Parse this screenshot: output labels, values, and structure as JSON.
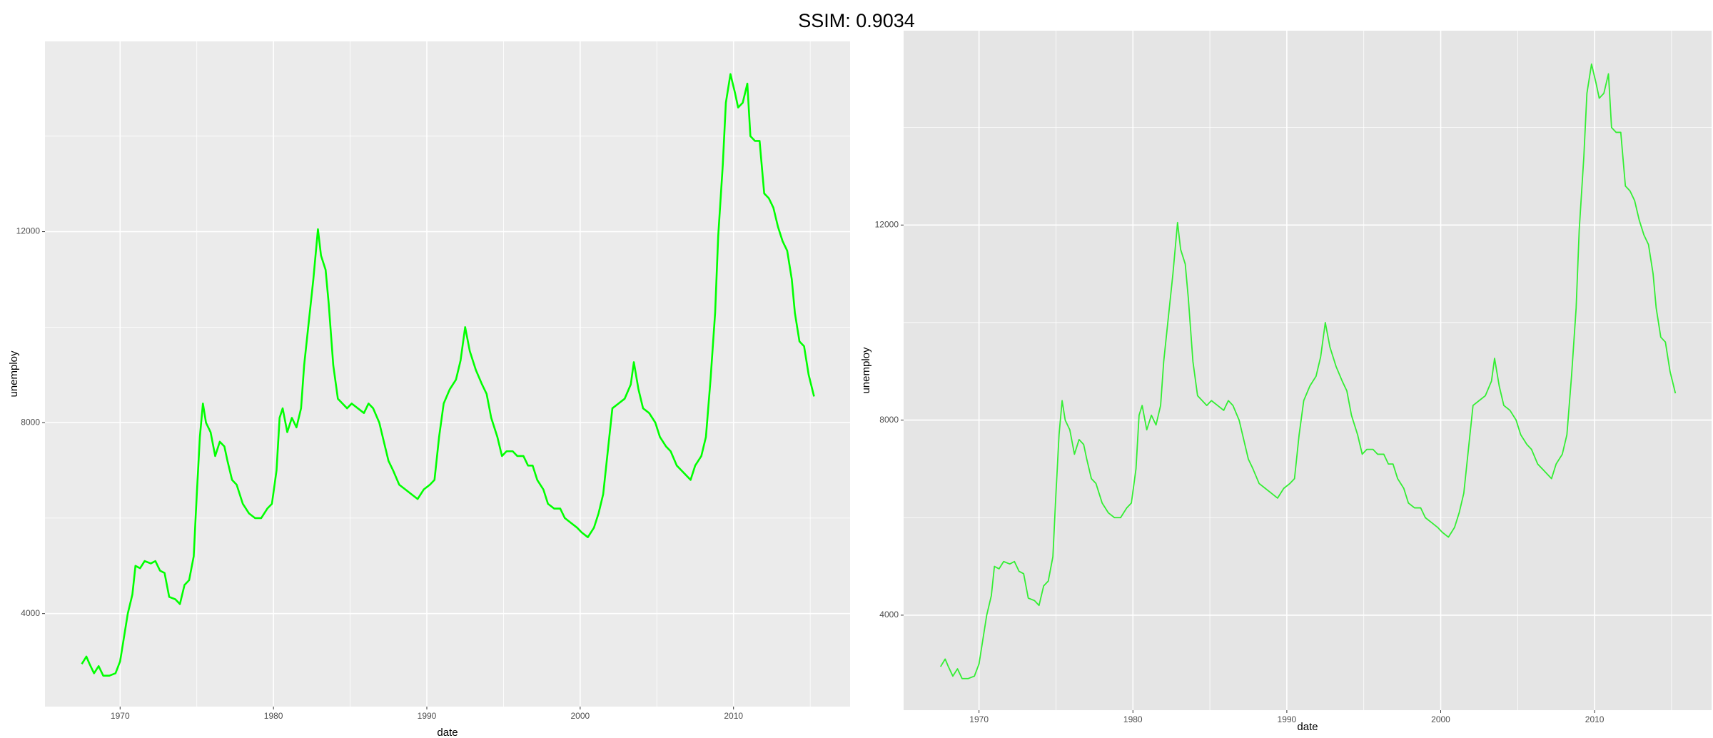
{
  "title": "SSIM: 0.9034",
  "chart_data": [
    {
      "type": "line",
      "xlabel": "date",
      "ylabel": "unemploy",
      "xlim": [
        1965.1,
        2017.6
      ],
      "ylim": [
        2052,
        15985
      ],
      "xticks": [
        1970,
        1980,
        1990,
        2000,
        2010
      ],
      "yticks": [
        4000,
        8000,
        12000
      ],
      "xminorticks": [
        1975,
        1985,
        1995,
        2005,
        2015
      ],
      "yminorticks": [
        6000,
        10000,
        14000
      ],
      "grid": true,
      "background": "#ebebeb",
      "grid_color": "#ffffff",
      "series": [
        {
          "name": "unemploy",
          "color": "#00ff00",
          "x": [
            1967.5,
            1967.8,
            1968.0,
            1968.3,
            1968.6,
            1968.9,
            1969.3,
            1969.7,
            1970.0,
            1970.2,
            1970.5,
            1970.8,
            1971.0,
            1971.3,
            1971.6,
            1972.0,
            1972.3,
            1972.6,
            1972.9,
            1973.2,
            1973.6,
            1973.9,
            1974.2,
            1974.5,
            1974.8,
            1975.0,
            1975.2,
            1975.4,
            1975.6,
            1975.9,
            1976.2,
            1976.5,
            1976.8,
            1977.0,
            1977.3,
            1977.6,
            1978.0,
            1978.4,
            1978.8,
            1979.2,
            1979.6,
            1979.9,
            1980.2,
            1980.4,
            1980.6,
            1980.9,
            1981.2,
            1981.5,
            1981.8,
            1982.0,
            1982.3,
            1982.6,
            1982.9,
            1983.1,
            1983.4,
            1983.6,
            1983.9,
            1984.2,
            1984.5,
            1984.8,
            1985.1,
            1985.5,
            1985.9,
            1986.2,
            1986.5,
            1986.9,
            1987.2,
            1987.5,
            1987.8,
            1988.2,
            1988.6,
            1989.0,
            1989.4,
            1989.8,
            1990.2,
            1990.5,
            1990.8,
            1991.1,
            1991.5,
            1991.9,
            1992.2,
            1992.5,
            1992.8,
            1993.2,
            1993.6,
            1993.9,
            1994.2,
            1994.6,
            1994.9,
            1995.2,
            1995.6,
            1995.9,
            1996.3,
            1996.6,
            1996.9,
            1997.2,
            1997.6,
            1997.9,
            1998.3,
            1998.7,
            1999.0,
            1999.4,
            1999.8,
            2000.1,
            2000.5,
            2000.9,
            2001.2,
            2001.5,
            2001.8,
            2002.1,
            2002.5,
            2002.9,
            2003.3,
            2003.5,
            2003.8,
            2004.1,
            2004.5,
            2004.9,
            2005.2,
            2005.6,
            2005.9,
            2006.3,
            2006.6,
            2006.9,
            2007.2,
            2007.5,
            2007.9,
            2008.2,
            2008.5,
            2008.8,
            2009.0,
            2009.3,
            2009.5,
            2009.8,
            2010.1,
            2010.3,
            2010.6,
            2010.9,
            2011.1,
            2011.4,
            2011.7,
            2012.0,
            2012.3,
            2012.6,
            2012.9,
            2013.2,
            2013.5,
            2013.8,
            2014.0,
            2014.3,
            2014.6,
            2014.9,
            2015.25
          ],
          "values": [
            2944,
            3100,
            2950,
            2750,
            2900,
            2700,
            2700,
            2750,
            3000,
            3400,
            4000,
            4400,
            5000,
            4950,
            5100,
            5050,
            5100,
            4900,
            4850,
            4350,
            4300,
            4200,
            4600,
            4700,
            5200,
            6500,
            7700,
            8400,
            8000,
            7800,
            7300,
            7600,
            7500,
            7200,
            6800,
            6700,
            6300,
            6100,
            6000,
            6000,
            6200,
            6300,
            7000,
            8100,
            8300,
            7800,
            8100,
            7900,
            8300,
            9200,
            10100,
            11000,
            12051,
            11500,
            11200,
            10500,
            9200,
            8500,
            8400,
            8300,
            8400,
            8300,
            8200,
            8400,
            8300,
            8000,
            7600,
            7200,
            7000,
            6700,
            6600,
            6500,
            6400,
            6600,
            6700,
            6800,
            7700,
            8400,
            8700,
            8900,
            9300,
            10000,
            9500,
            9100,
            8800,
            8600,
            8100,
            7700,
            7300,
            7400,
            7400,
            7300,
            7300,
            7100,
            7100,
            6800,
            6600,
            6300,
            6200,
            6200,
            6000,
            5900,
            5800,
            5700,
            5600,
            5800,
            6100,
            6500,
            7400,
            8300,
            8400,
            8500,
            8800,
            9266,
            8700,
            8300,
            8200,
            8000,
            7700,
            7500,
            7400,
            7100,
            7000,
            6900,
            6800,
            7100,
            7300,
            7700,
            8900,
            10300,
            11900,
            13400,
            14700,
            15300,
            14900,
            14600,
            14700,
            15100,
            14000,
            13900,
            13900,
            12800,
            12700,
            12500,
            12100,
            11800,
            11600,
            11000,
            10300,
            9700,
            9600,
            9000,
            8549
          ]
        }
      ]
    },
    {
      "type": "line",
      "xlabel": "date",
      "ylabel": "unemploy",
      "xlim": [
        1965.1,
        2017.6
      ],
      "ylim": [
        2052,
        15985
      ],
      "xticks": [
        1970,
        1980,
        1990,
        2000,
        2010
      ],
      "yticks": [
        4000,
        8000,
        12000
      ],
      "xminorticks": [
        1975,
        1985,
        1995,
        2005,
        2015
      ],
      "yminorticks": [
        6000,
        10000,
        14000
      ],
      "grid": true,
      "background": "#e5e5e5",
      "grid_color": "#ffffff",
      "series": [
        {
          "name": "unemploy",
          "color": "#33ee33",
          "x": [
            1967.5,
            1967.8,
            1968.0,
            1968.3,
            1968.6,
            1968.9,
            1969.3,
            1969.7,
            1970.0,
            1970.2,
            1970.5,
            1970.8,
            1971.0,
            1971.3,
            1971.6,
            1972.0,
            1972.3,
            1972.6,
            1972.9,
            1973.2,
            1973.6,
            1973.9,
            1974.2,
            1974.5,
            1974.8,
            1975.0,
            1975.2,
            1975.4,
            1975.6,
            1975.9,
            1976.2,
            1976.5,
            1976.8,
            1977.0,
            1977.3,
            1977.6,
            1978.0,
            1978.4,
            1978.8,
            1979.2,
            1979.6,
            1979.9,
            1980.2,
            1980.4,
            1980.6,
            1980.9,
            1981.2,
            1981.5,
            1981.8,
            1982.0,
            1982.3,
            1982.6,
            1982.9,
            1983.1,
            1983.4,
            1983.6,
            1983.9,
            1984.2,
            1984.5,
            1984.8,
            1985.1,
            1985.5,
            1985.9,
            1986.2,
            1986.5,
            1986.9,
            1987.2,
            1987.5,
            1987.8,
            1988.2,
            1988.6,
            1989.0,
            1989.4,
            1989.8,
            1990.2,
            1990.5,
            1990.8,
            1991.1,
            1991.5,
            1991.9,
            1992.2,
            1992.5,
            1992.8,
            1993.2,
            1993.6,
            1993.9,
            1994.2,
            1994.6,
            1994.9,
            1995.2,
            1995.6,
            1995.9,
            1996.3,
            1996.6,
            1996.9,
            1997.2,
            1997.6,
            1997.9,
            1998.3,
            1998.7,
            1999.0,
            1999.4,
            1999.8,
            2000.1,
            2000.5,
            2000.9,
            2001.2,
            2001.5,
            2001.8,
            2002.1,
            2002.5,
            2002.9,
            2003.3,
            2003.5,
            2003.8,
            2004.1,
            2004.5,
            2004.9,
            2005.2,
            2005.6,
            2005.9,
            2006.3,
            2006.6,
            2006.9,
            2007.2,
            2007.5,
            2007.9,
            2008.2,
            2008.5,
            2008.8,
            2009.0,
            2009.3,
            2009.5,
            2009.8,
            2010.1,
            2010.3,
            2010.6,
            2010.9,
            2011.1,
            2011.4,
            2011.7,
            2012.0,
            2012.3,
            2012.6,
            2012.9,
            2013.2,
            2013.5,
            2013.8,
            2014.0,
            2014.3,
            2014.6,
            2014.9,
            2015.25
          ],
          "values": [
            2944,
            3100,
            2950,
            2750,
            2900,
            2700,
            2700,
            2750,
            3000,
            3400,
            4000,
            4400,
            5000,
            4950,
            5100,
            5050,
            5100,
            4900,
            4850,
            4350,
            4300,
            4200,
            4600,
            4700,
            5200,
            6500,
            7700,
            8400,
            8000,
            7800,
            7300,
            7600,
            7500,
            7200,
            6800,
            6700,
            6300,
            6100,
            6000,
            6000,
            6200,
            6300,
            7000,
            8100,
            8300,
            7800,
            8100,
            7900,
            8300,
            9200,
            10100,
            11000,
            12051,
            11500,
            11200,
            10500,
            9200,
            8500,
            8400,
            8300,
            8400,
            8300,
            8200,
            8400,
            8300,
            8000,
            7600,
            7200,
            7000,
            6700,
            6600,
            6500,
            6400,
            6600,
            6700,
            6800,
            7700,
            8400,
            8700,
            8900,
            9300,
            10000,
            9500,
            9100,
            8800,
            8600,
            8100,
            7700,
            7300,
            7400,
            7400,
            7300,
            7300,
            7100,
            7100,
            6800,
            6600,
            6300,
            6200,
            6200,
            6000,
            5900,
            5800,
            5700,
            5600,
            5800,
            6100,
            6500,
            7400,
            8300,
            8400,
            8500,
            8800,
            9266,
            8700,
            8300,
            8200,
            8000,
            7700,
            7500,
            7400,
            7100,
            7000,
            6900,
            6800,
            7100,
            7300,
            7700,
            8900,
            10300,
            11900,
            13400,
            14700,
            15300,
            14900,
            14600,
            14700,
            15100,
            14000,
            13900,
            13900,
            12800,
            12700,
            12500,
            12100,
            11800,
            11600,
            11000,
            10300,
            9700,
            9600,
            9000,
            8549
          ]
        }
      ]
    }
  ]
}
